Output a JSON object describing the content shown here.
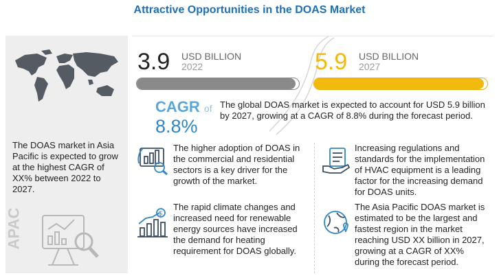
{
  "title": "Attractive Opportunities in the DOAS Market",
  "left_panel": {
    "text": "The DOAS market in Asia Pacific is expected to grow at the highest CAGR of XX% between 2022 to 2027.",
    "region_label": "APAC",
    "map_icon": "world-map-icon",
    "analytics_icon": "chart-magnifier-icon"
  },
  "market_2022": {
    "value": "3.9",
    "unit": "USD BILLION",
    "year": "2022",
    "bar_fill": 0.98,
    "bar_color": "#8a8a8a"
  },
  "market_2027": {
    "value": "5.9",
    "unit": "USD BILLION",
    "year": "2027",
    "bar_fill": 0.98,
    "bar_color": "#f2b90f"
  },
  "cagr": {
    "label": "CAGR",
    "of": "of",
    "value": "8.8%"
  },
  "summary": "The global DOAS market is expected to account for USD 5.9 billion by 2027, growing at a CAGR of 8.8% during the forecast period.",
  "points": [
    {
      "icon": "chart-growth-icon",
      "text": "The higher adoption of DOAS in the commercial and residential sectors is a key driver for the growth of the market."
    },
    {
      "icon": "regulation-hand-icon",
      "text": "Increasing regulations and standards for the implementation of HVAC equipment is a leading factor for the increasing demand for DOAS units."
    },
    {
      "icon": "dollar-bars-icon",
      "text": "The rapid climate changes and increased need for renewable energy sources have increased the demand for heating requirement for DOAS globally."
    },
    {
      "icon": "globe-location-icon",
      "text": "The Asia Pacific DOAS market is estimated to be the largest and fastest region in the market reaching USD XX billion in 2027, growing at a CAGR of XX% during the forecast period."
    }
  ],
  "colors": {
    "title": "#1f6fb7",
    "accent_blue": "#2f86c7",
    "accent_yellow": "#f2b90f",
    "grey_bar": "#8a8a8a"
  }
}
